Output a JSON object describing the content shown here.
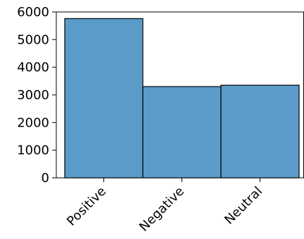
{
  "chart_data": {
    "type": "bar",
    "categories": [
      "Positive",
      "Negative",
      "Neutral"
    ],
    "values": [
      5760,
      3300,
      3350
    ],
    "title": "",
    "xlabel": "",
    "ylabel": "",
    "ylim": [
      0,
      6000
    ],
    "yticks": [
      0,
      1000,
      2000,
      3000,
      4000,
      5000,
      6000
    ],
    "grid": false,
    "bar_color": "#5b9bc9",
    "edge_color": "#000000"
  }
}
